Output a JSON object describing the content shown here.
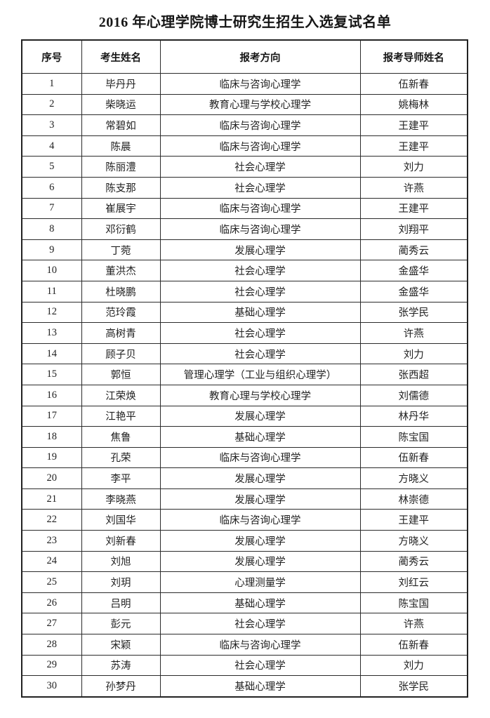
{
  "page": {
    "title": "2016 年心理学院博士研究生招生入选复试名单"
  },
  "table": {
    "headers": [
      "序号",
      "考生姓名",
      "报考方向",
      "报考导师姓名"
    ],
    "rows": [
      {
        "no": "1",
        "name": "毕丹丹",
        "direction": "临床与咨询心理学",
        "supervisor": "伍新春"
      },
      {
        "no": "2",
        "name": "柴晓运",
        "direction": "教育心理与学校心理学",
        "supervisor": "姚梅林"
      },
      {
        "no": "3",
        "name": "常碧如",
        "direction": "临床与咨询心理学",
        "supervisor": "王建平"
      },
      {
        "no": "4",
        "name": "陈晨",
        "direction": "临床与咨询心理学",
        "supervisor": "王建平"
      },
      {
        "no": "5",
        "name": "陈丽澧",
        "direction": "社会心理学",
        "supervisor": "刘力"
      },
      {
        "no": "6",
        "name": "陈支那",
        "direction": "社会心理学",
        "supervisor": "许燕"
      },
      {
        "no": "7",
        "name": "崔展宇",
        "direction": "临床与咨询心理学",
        "supervisor": "王建平"
      },
      {
        "no": "8",
        "name": "邓衍鹤",
        "direction": "临床与咨询心理学",
        "supervisor": "刘翔平"
      },
      {
        "no": "9",
        "name": "丁菀",
        "direction": "发展心理学",
        "supervisor": "蔺秀云"
      },
      {
        "no": "10",
        "name": "董洪杰",
        "direction": "社会心理学",
        "supervisor": "金盛华"
      },
      {
        "no": "11",
        "name": "杜晓鹏",
        "direction": "社会心理学",
        "supervisor": "金盛华"
      },
      {
        "no": "12",
        "name": "范玲霞",
        "direction": "基础心理学",
        "supervisor": "张学民"
      },
      {
        "no": "13",
        "name": "高树青",
        "direction": "社会心理学",
        "supervisor": "许燕"
      },
      {
        "no": "14",
        "name": "顾子贝",
        "direction": "社会心理学",
        "supervisor": "刘力"
      },
      {
        "no": "15",
        "name": "郭恒",
        "direction": "管理心理学（工业与组织心理学）",
        "supervisor": "张西超"
      },
      {
        "no": "16",
        "name": "江荣焕",
        "direction": "教育心理与学校心理学",
        "supervisor": "刘儒德"
      },
      {
        "no": "17",
        "name": "江艳平",
        "direction": "发展心理学",
        "supervisor": "林丹华"
      },
      {
        "no": "18",
        "name": "焦鲁",
        "direction": "基础心理学",
        "supervisor": "陈宝国"
      },
      {
        "no": "19",
        "name": "孔荣",
        "direction": "临床与咨询心理学",
        "supervisor": "伍新春"
      },
      {
        "no": "20",
        "name": "李平",
        "direction": "发展心理学",
        "supervisor": "方晓义"
      },
      {
        "no": "21",
        "name": "李晓燕",
        "direction": "发展心理学",
        "supervisor": "林崇德"
      },
      {
        "no": "22",
        "name": "刘国华",
        "direction": "临床与咨询心理学",
        "supervisor": "王建平"
      },
      {
        "no": "23",
        "name": "刘新春",
        "direction": "发展心理学",
        "supervisor": "方晓义"
      },
      {
        "no": "24",
        "name": "刘旭",
        "direction": "发展心理学",
        "supervisor": "蔺秀云"
      },
      {
        "no": "25",
        "name": "刘玥",
        "direction": "心理测量学",
        "supervisor": "刘红云"
      },
      {
        "no": "26",
        "name": "吕明",
        "direction": "基础心理学",
        "supervisor": "陈宝国"
      },
      {
        "no": "27",
        "name": "彭元",
        "direction": "社会心理学",
        "supervisor": "许燕"
      },
      {
        "no": "28",
        "name": "宋颖",
        "direction": "临床与咨询心理学",
        "supervisor": "伍新春"
      },
      {
        "no": "29",
        "name": "苏涛",
        "direction": "社会心理学",
        "supervisor": "刘力"
      },
      {
        "no": "30",
        "name": "孙梦丹",
        "direction": "基础心理学",
        "supervisor": "张学民"
      }
    ]
  }
}
